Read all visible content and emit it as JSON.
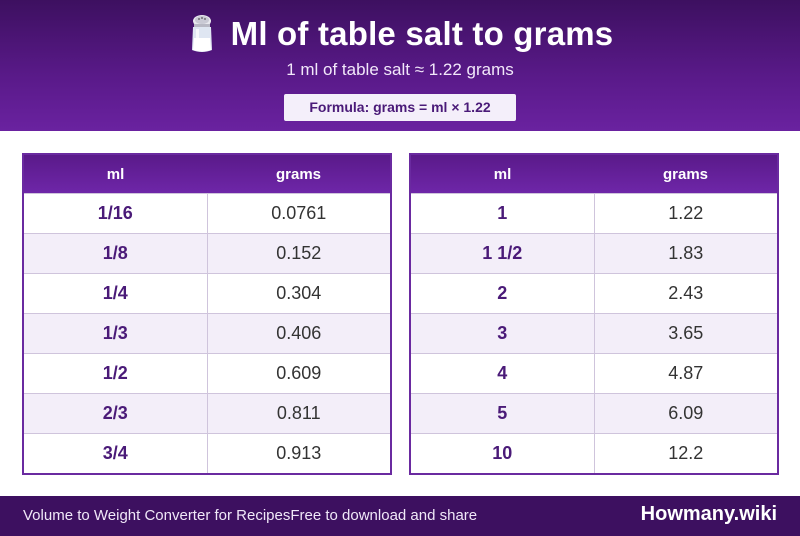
{
  "header": {
    "title": "Ml of table salt to grams",
    "subtitle": "1 ml of table salt ≈ 1.22 grams",
    "formula": "Formula: grams = ml × 1.22",
    "icon": "salt-shaker-icon"
  },
  "tables": [
    {
      "headers": [
        "ml",
        "grams"
      ],
      "rows": [
        [
          "1/16",
          "0.0761"
        ],
        [
          "1/8",
          "0.152"
        ],
        [
          "1/4",
          "0.304"
        ],
        [
          "1/3",
          "0.406"
        ],
        [
          "1/2",
          "0.609"
        ],
        [
          "2/3",
          "0.811"
        ],
        [
          "3/4",
          "0.913"
        ]
      ]
    },
    {
      "headers": [
        "ml",
        "grams"
      ],
      "rows": [
        [
          "1",
          "1.22"
        ],
        [
          "1 1/2",
          "1.83"
        ],
        [
          "2",
          "2.43"
        ],
        [
          "3",
          "3.65"
        ],
        [
          "4",
          "4.87"
        ],
        [
          "5",
          "6.09"
        ],
        [
          "10",
          "12.2"
        ]
      ]
    }
  ],
  "footer": {
    "left": "Volume to Weight Converter for RecipesFree to download and share",
    "brand": "Howmany.wiki"
  },
  "colors": {
    "brand_purple": "#5a1a8a",
    "dark_purple": "#3d1060",
    "alt_row": "#f3eef9"
  }
}
